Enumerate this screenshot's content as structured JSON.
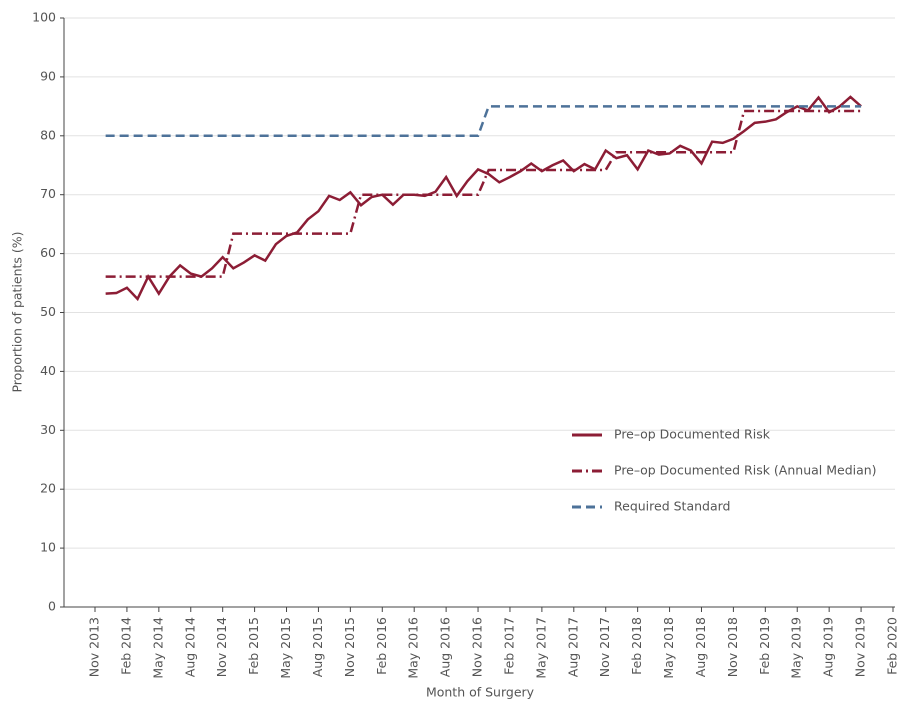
{
  "chart_data": {
    "type": "line",
    "ylabel": "Proportion of patients (%)",
    "xlabel": "Month of Surgery",
    "categories": [
      "Nov 2013",
      null,
      null,
      "Feb 2014",
      null,
      null,
      "May 2014",
      null,
      null,
      "Aug 2014",
      null,
      null,
      "Nov 2014",
      null,
      null,
      "Feb 2015",
      null,
      null,
      "May 2015",
      null,
      null,
      "Aug 2015",
      null,
      null,
      "Nov 2015",
      null,
      null,
      "Feb 2016",
      null,
      null,
      "May 2016",
      null,
      null,
      "Aug 2016",
      null,
      null,
      "Nov 2016",
      null,
      null,
      "Feb 2017",
      null,
      null,
      "May 2017",
      null,
      null,
      "Aug 2017",
      null,
      null,
      "Nov 2017",
      null,
      null,
      "Feb 2018",
      null,
      null,
      "May 2018",
      null,
      null,
      "Aug 2018",
      null,
      null,
      "Nov 2018",
      null,
      null,
      "Feb 2019",
      null,
      null,
      "May 2019",
      null,
      null,
      "Aug 2019",
      null,
      null,
      "Nov 2019",
      null,
      null,
      "Feb 2020"
    ],
    "series": [
      {
        "name": "Pre–op Documented Risk",
        "color": "#8c1d35",
        "dash": "solid",
        "values": [
          null,
          53.2,
          53.3,
          54.2,
          52.3,
          56.1,
          53.2,
          56.1,
          58.0,
          56.6,
          56.1,
          57.5,
          59.4,
          57.5,
          58.5,
          59.7,
          58.8,
          61.6,
          63.0,
          63.6,
          65.8,
          67.2,
          69.8,
          69.1,
          70.4,
          68.2,
          69.6,
          70.0,
          68.3,
          70.0,
          70.0,
          69.8,
          70.5,
          73.0,
          69.8,
          72.3,
          74.3,
          73.5,
          72.1,
          73.0,
          74.0,
          75.3,
          74.0,
          75.0,
          75.8,
          74.0,
          75.2,
          74.3,
          77.5,
          76.2,
          76.7,
          74.3,
          77.5,
          76.8,
          77.0,
          78.3,
          77.5,
          75.3,
          79.0,
          78.8,
          79.5,
          80.8,
          82.2,
          82.4,
          82.8,
          84.0,
          85.0,
          84.3,
          86.5,
          84.0,
          85.0,
          86.6,
          85.0,
          null,
          null,
          null
        ]
      },
      {
        "name": "Pre–op Documented Risk (Annual Median)",
        "color": "#8c1d35",
        "dash": "dashdot",
        "values": [
          null,
          56.1,
          56.1,
          56.1,
          56.1,
          56.1,
          56.1,
          56.1,
          56.1,
          56.1,
          56.1,
          56.1,
          56.1,
          63.4,
          63.4,
          63.4,
          63.4,
          63.4,
          63.4,
          63.4,
          63.4,
          63.4,
          63.4,
          63.4,
          63.4,
          70.0,
          70.0,
          70.0,
          70.0,
          70.0,
          70.0,
          70.0,
          70.0,
          70.0,
          70.0,
          70.0,
          70.0,
          74.2,
          74.2,
          74.2,
          74.2,
          74.2,
          74.2,
          74.2,
          74.2,
          74.2,
          74.2,
          74.2,
          74.2,
          77.2,
          77.2,
          77.2,
          77.2,
          77.2,
          77.2,
          77.2,
          77.2,
          77.2,
          77.2,
          77.2,
          77.2,
          84.2,
          84.2,
          84.2,
          84.2,
          84.2,
          84.2,
          84.2,
          84.2,
          84.2,
          84.2,
          84.2,
          84.2,
          null,
          null,
          null
        ]
      },
      {
        "name": "Required Standard",
        "color": "#4d7299",
        "dash": "dashed",
        "values": [
          null,
          80,
          80,
          80,
          80,
          80,
          80,
          80,
          80,
          80,
          80,
          80,
          80,
          80,
          80,
          80,
          80,
          80,
          80,
          80,
          80,
          80,
          80,
          80,
          80,
          80,
          80,
          80,
          80,
          80,
          80,
          80,
          80,
          80,
          80,
          80,
          80,
          85,
          85,
          85,
          85,
          85,
          85,
          85,
          85,
          85,
          85,
          85,
          85,
          85,
          85,
          85,
          85,
          85,
          85,
          85,
          85,
          85,
          85,
          85,
          85,
          85,
          85,
          85,
          85,
          85,
          85,
          85,
          85,
          85,
          85,
          85,
          85,
          null,
          null,
          null
        ]
      }
    ],
    "ylim": [
      0,
      100
    ],
    "yticks": [
      0,
      10,
      20,
      30,
      40,
      50,
      60,
      70,
      80,
      90,
      100
    ],
    "grid": true,
    "legend": "lower right"
  }
}
